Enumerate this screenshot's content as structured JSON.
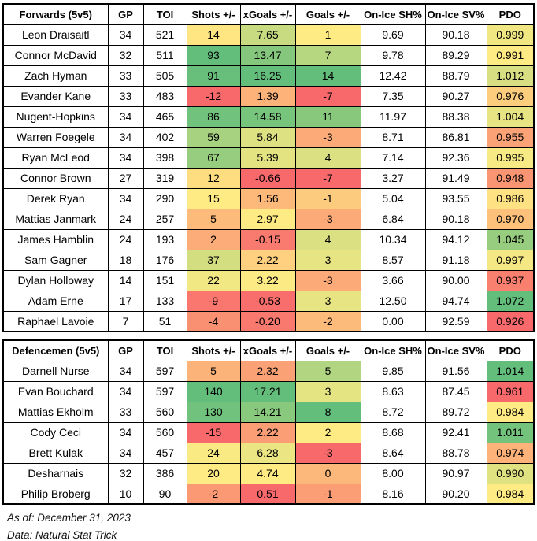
{
  "conditional_format": {
    "min_color": "#F8696B",
    "mid_color": "#FFEB84",
    "max_color": "#63BE7B",
    "midpoint": "median",
    "colored_columns": [
      "shots",
      "xgoals",
      "goals",
      "pdo"
    ]
  },
  "chart_data": [
    {
      "type": "table",
      "title": "Forwards (5v5)",
      "columns": [
        "GP",
        "TOI",
        "Shots +/-",
        "xGoals +/-",
        "Goals +/-",
        "On-Ice SH%",
        "On-Ice SV%",
        "PDO"
      ],
      "rows": [
        {
          "player": "Leon Draisaitl",
          "gp": "34",
          "toi": "521",
          "shots": "14",
          "xgoals": "7.65",
          "goals": "1",
          "on_ice_sh_pct": "9.69",
          "on_ice_sv_pct": "90.18",
          "pdo": "0.999"
        },
        {
          "player": "Connor McDavid",
          "gp": "32",
          "toi": "511",
          "shots": "93",
          "xgoals": "13.47",
          "goals": "7",
          "on_ice_sh_pct": "9.78",
          "on_ice_sv_pct": "89.29",
          "pdo": "0.991"
        },
        {
          "player": "Zach Hyman",
          "gp": "33",
          "toi": "505",
          "shots": "91",
          "xgoals": "16.25",
          "goals": "14",
          "on_ice_sh_pct": "12.42",
          "on_ice_sv_pct": "88.79",
          "pdo": "1.012"
        },
        {
          "player": "Evander Kane",
          "gp": "33",
          "toi": "483",
          "shots": "-12",
          "xgoals": "1.39",
          "goals": "-7",
          "on_ice_sh_pct": "7.35",
          "on_ice_sv_pct": "90.27",
          "pdo": "0.976"
        },
        {
          "player": "Nugent-Hopkins",
          "gp": "34",
          "toi": "465",
          "shots": "86",
          "xgoals": "14.58",
          "goals": "11",
          "on_ice_sh_pct": "11.97",
          "on_ice_sv_pct": "88.38",
          "pdo": "1.004"
        },
        {
          "player": "Warren Foegele",
          "gp": "34",
          "toi": "402",
          "shots": "59",
          "xgoals": "5.84",
          "goals": "-3",
          "on_ice_sh_pct": "8.71",
          "on_ice_sv_pct": "86.81",
          "pdo": "0.955"
        },
        {
          "player": "Ryan McLeod",
          "gp": "34",
          "toi": "398",
          "shots": "67",
          "xgoals": "5.39",
          "goals": "4",
          "on_ice_sh_pct": "7.14",
          "on_ice_sv_pct": "92.36",
          "pdo": "0.995"
        },
        {
          "player": "Connor Brown",
          "gp": "27",
          "toi": "319",
          "shots": "12",
          "xgoals": "-0.66",
          "goals": "-7",
          "on_ice_sh_pct": "3.27",
          "on_ice_sv_pct": "91.49",
          "pdo": "0.948"
        },
        {
          "player": "Derek Ryan",
          "gp": "34",
          "toi": "290",
          "shots": "15",
          "xgoals": "1.56",
          "goals": "-1",
          "on_ice_sh_pct": "5.04",
          "on_ice_sv_pct": "93.55",
          "pdo": "0.986"
        },
        {
          "player": "Mattias Janmark",
          "gp": "24",
          "toi": "257",
          "shots": "5",
          "xgoals": "2.97",
          "goals": "-3",
          "on_ice_sh_pct": "6.84",
          "on_ice_sv_pct": "90.18",
          "pdo": "0.970"
        },
        {
          "player": "James Hamblin",
          "gp": "24",
          "toi": "193",
          "shots": "2",
          "xgoals": "-0.15",
          "goals": "4",
          "on_ice_sh_pct": "10.34",
          "on_ice_sv_pct": "94.12",
          "pdo": "1.045"
        },
        {
          "player": "Sam Gagner",
          "gp": "18",
          "toi": "176",
          "shots": "37",
          "xgoals": "2.22",
          "goals": "3",
          "on_ice_sh_pct": "8.57",
          "on_ice_sv_pct": "91.18",
          "pdo": "0.997"
        },
        {
          "player": "Dylan Holloway",
          "gp": "14",
          "toi": "151",
          "shots": "22",
          "xgoals": "3.22",
          "goals": "-3",
          "on_ice_sh_pct": "3.66",
          "on_ice_sv_pct": "90.00",
          "pdo": "0.937"
        },
        {
          "player": "Adam Erne",
          "gp": "17",
          "toi": "133",
          "shots": "-9",
          "xgoals": "-0.53",
          "goals": "3",
          "on_ice_sh_pct": "12.50",
          "on_ice_sv_pct": "94.74",
          "pdo": "1.072"
        },
        {
          "player": "Raphael Lavoie",
          "gp": "7",
          "toi": "51",
          "shots": "-4",
          "xgoals": "-0.20",
          "goals": "-2",
          "on_ice_sh_pct": "0.00",
          "on_ice_sv_pct": "92.59",
          "pdo": "0.926"
        }
      ]
    },
    {
      "type": "table",
      "title": "Defencemen (5v5)",
      "columns": [
        "GP",
        "TOI",
        "Shots +/-",
        "xGoals +/-",
        "Goals +/-",
        "On-Ice SH%",
        "On-Ice SV%",
        "PDO"
      ],
      "rows": [
        {
          "player": "Darnell Nurse",
          "gp": "34",
          "toi": "597",
          "shots": "5",
          "xgoals": "2.32",
          "goals": "5",
          "on_ice_sh_pct": "9.85",
          "on_ice_sv_pct": "91.56",
          "pdo": "1.014"
        },
        {
          "player": "Evan Bouchard",
          "gp": "34",
          "toi": "597",
          "shots": "140",
          "xgoals": "17.21",
          "goals": "3",
          "on_ice_sh_pct": "8.63",
          "on_ice_sv_pct": "87.45",
          "pdo": "0.961"
        },
        {
          "player": "Mattias Ekholm",
          "gp": "33",
          "toi": "560",
          "shots": "130",
          "xgoals": "14.21",
          "goals": "8",
          "on_ice_sh_pct": "8.72",
          "on_ice_sv_pct": "89.72",
          "pdo": "0.984"
        },
        {
          "player": "Cody Ceci",
          "gp": "34",
          "toi": "560",
          "shots": "-15",
          "xgoals": "2.22",
          "goals": "2",
          "on_ice_sh_pct": "8.68",
          "on_ice_sv_pct": "92.41",
          "pdo": "1.011"
        },
        {
          "player": "Brett Kulak",
          "gp": "34",
          "toi": "457",
          "shots": "24",
          "xgoals": "6.28",
          "goals": "-3",
          "on_ice_sh_pct": "8.64",
          "on_ice_sv_pct": "88.78",
          "pdo": "0.974"
        },
        {
          "player": "Desharnais",
          "gp": "32",
          "toi": "386",
          "shots": "20",
          "xgoals": "4.74",
          "goals": "0",
          "on_ice_sh_pct": "8.00",
          "on_ice_sv_pct": "90.97",
          "pdo": "0.990"
        },
        {
          "player": "Philip Broberg",
          "gp": "10",
          "toi": "90",
          "shots": "-2",
          "xgoals": "0.51",
          "goals": "-1",
          "on_ice_sh_pct": "8.16",
          "on_ice_sv_pct": "90.20",
          "pdo": "0.984"
        }
      ]
    }
  ],
  "footer": {
    "as_of": "As of: December 31, 2023",
    "source": "Data: Natural Stat Trick"
  }
}
